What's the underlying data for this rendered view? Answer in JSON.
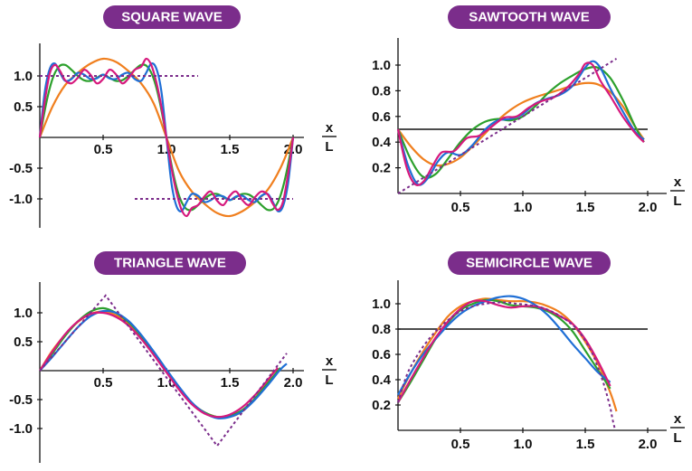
{
  "colors": {
    "badge": "#7b2d8b",
    "target": "#7b2d8b",
    "orange": "#f07f1e",
    "green": "#2ca02c",
    "blue": "#1f6fd6",
    "magenta": "#d6197d"
  },
  "xaxis_label": {
    "num": "x",
    "den": "L"
  },
  "chart_data": [
    {
      "id": "square",
      "type": "line",
      "title": "SQUARE WAVE",
      "xlim": [
        0,
        2.1
      ],
      "ylim": [
        -1.4,
        1.45
      ],
      "x_ticks": [
        0.5,
        1.0,
        1.5,
        2.0
      ],
      "x_tick_labels": [
        "0.5",
        "1.0",
        "1.5",
        "2.0"
      ],
      "y_ticks": [
        1.0,
        0.5,
        -0.5,
        -1.0
      ],
      "y_tick_labels": [
        "1.0",
        "0.5",
        "-0.5",
        "-1.0"
      ],
      "target_series": [
        {
          "style": "dotted",
          "x": [
            0,
            1.25
          ],
          "y": [
            1.0,
            1.0
          ]
        },
        {
          "style": "dotted",
          "x": [
            0.75,
            2.0
          ],
          "y": [
            -1.0,
            -1.0
          ]
        }
      ],
      "series": [
        {
          "color": "orange",
          "x": [
            0,
            0.1,
            0.2,
            0.3,
            0.4,
            0.5,
            0.6,
            0.7,
            0.8,
            0.9,
            1.0,
            1.1,
            1.2,
            1.3,
            1.4,
            1.5,
            1.6,
            1.7,
            1.8,
            1.9,
            2.0
          ],
          "y": [
            0,
            0.5,
            0.85,
            1.05,
            1.2,
            1.28,
            1.23,
            1.08,
            0.88,
            0.55,
            0,
            -0.55,
            -0.88,
            -1.08,
            -1.23,
            -1.28,
            -1.2,
            -1.05,
            -0.85,
            -0.5,
            0
          ]
        },
        {
          "color": "green",
          "x": [
            0,
            0.05,
            0.1,
            0.15,
            0.2,
            0.25,
            0.3,
            0.35,
            0.4,
            0.45,
            0.5,
            0.55,
            0.6,
            0.65,
            0.7,
            0.75,
            0.8,
            0.85,
            0.9,
            0.95,
            1.0,
            1.05,
            1.1,
            1.15,
            1.2,
            1.25,
            1.3,
            1.35,
            1.4,
            1.45,
            1.5,
            1.55,
            1.6,
            1.65,
            1.7,
            1.75,
            1.8,
            1.85,
            1.9,
            1.95,
            2.0
          ],
          "y": [
            0,
            0.55,
            0.95,
            1.15,
            1.18,
            1.1,
            1.0,
            0.93,
            0.92,
            0.97,
            1.02,
            0.97,
            0.92,
            0.93,
            1.0,
            1.1,
            1.18,
            1.15,
            0.95,
            0.55,
            0,
            -0.55,
            -0.95,
            -1.15,
            -1.18,
            -1.1,
            -1.0,
            -0.93,
            -0.92,
            -0.97,
            -1.02,
            -0.97,
            -0.92,
            -0.93,
            -1.0,
            -1.1,
            -1.18,
            -1.15,
            -0.95,
            -0.55,
            0
          ]
        },
        {
          "color": "blue",
          "x": [
            0,
            0.04,
            0.08,
            0.12,
            0.16,
            0.2,
            0.25,
            0.3,
            0.35,
            0.4,
            0.45,
            0.5,
            0.55,
            0.6,
            0.65,
            0.7,
            0.75,
            0.8,
            0.84,
            0.88,
            0.92,
            0.96,
            1.0,
            1.04,
            1.08,
            1.12,
            1.16,
            1.2,
            1.25,
            1.3,
            1.35,
            1.4,
            1.45,
            1.5,
            1.55,
            1.6,
            1.65,
            1.7,
            1.75,
            1.8,
            1.84,
            1.88,
            1.92,
            1.96,
            2.0
          ],
          "y": [
            0,
            0.75,
            1.12,
            1.2,
            1.05,
            0.92,
            0.95,
            1.05,
            1.02,
            0.95,
            0.96,
            1.02,
            0.96,
            0.95,
            1.02,
            1.05,
            0.95,
            0.92,
            1.05,
            1.2,
            1.12,
            0.75,
            0,
            -0.75,
            -1.12,
            -1.2,
            -1.05,
            -0.92,
            -0.95,
            -1.05,
            -1.02,
            -0.95,
            -0.96,
            -1.02,
            -0.96,
            -0.95,
            -1.02,
            -1.05,
            -0.95,
            -0.92,
            -1.05,
            -1.2,
            -1.12,
            -0.75,
            0
          ]
        },
        {
          "color": "magenta",
          "x": [
            0,
            0.04,
            0.08,
            0.12,
            0.16,
            0.2,
            0.25,
            0.3,
            0.35,
            0.4,
            0.45,
            0.5,
            0.55,
            0.6,
            0.65,
            0.7,
            0.75,
            0.8,
            0.84,
            0.88,
            0.92,
            0.96,
            1.0,
            1.04,
            1.08,
            1.12,
            1.16,
            1.2,
            1.25,
            1.3,
            1.35,
            1.4,
            1.45,
            1.5,
            1.55,
            1.6,
            1.65,
            1.7,
            1.75,
            1.8,
            1.84,
            1.88,
            1.92,
            1.96,
            2.0
          ],
          "y": [
            0,
            0.6,
            1.05,
            1.18,
            1.08,
            0.93,
            0.88,
            0.97,
            1.1,
            1.02,
            0.88,
            0.95,
            1.1,
            1.03,
            0.88,
            0.96,
            1.1,
            1.15,
            1.28,
            1.18,
            0.9,
            0.5,
            0,
            -0.5,
            -0.9,
            -1.18,
            -1.28,
            -1.15,
            -1.1,
            -0.96,
            -0.88,
            -1.03,
            -1.1,
            -0.95,
            -0.88,
            -1.02,
            -1.1,
            -0.97,
            -0.88,
            -0.93,
            -1.08,
            -1.18,
            -1.05,
            -0.6,
            0
          ]
        }
      ]
    },
    {
      "id": "sawtooth",
      "type": "line",
      "title": "SAWTOOTH WAVE",
      "xlim": [
        0,
        2.15
      ],
      "ylim": [
        0,
        1.2
      ],
      "x_ticks": [
        0.5,
        1.0,
        1.5,
        2.0
      ],
      "x_tick_labels": [
        "0.5",
        "1.0",
        "1.5",
        "2.0"
      ],
      "y_ticks": [
        1.0,
        0.8,
        0.6,
        0.4,
        0.2
      ],
      "y_tick_labels": [
        "1.0",
        "0.8",
        "0.6",
        "0.4",
        "0.2"
      ],
      "reference_line": 0.5,
      "target_series": [
        {
          "style": "dotted",
          "x": [
            0,
            1.75
          ],
          "y": [
            0,
            1.05
          ]
        }
      ],
      "series": [
        {
          "color": "orange",
          "x": [
            0,
            0.1,
            0.2,
            0.3,
            0.4,
            0.5,
            0.6,
            0.7,
            0.8,
            0.9,
            1.0,
            1.1,
            1.2,
            1.3,
            1.4,
            1.5,
            1.6,
            1.7,
            1.8,
            1.9,
            1.97
          ],
          "y": [
            0.5,
            0.37,
            0.27,
            0.22,
            0.23,
            0.28,
            0.37,
            0.47,
            0.57,
            0.65,
            0.71,
            0.75,
            0.78,
            0.81,
            0.84,
            0.86,
            0.85,
            0.79,
            0.68,
            0.52,
            0.42
          ]
        },
        {
          "color": "green",
          "x": [
            0,
            0.1,
            0.2,
            0.3,
            0.4,
            0.5,
            0.6,
            0.7,
            0.8,
            0.9,
            1.0,
            1.1,
            1.2,
            1.3,
            1.4,
            1.5,
            1.6,
            1.7,
            1.8,
            1.9,
            1.97
          ],
          "y": [
            0.5,
            0.27,
            0.13,
            0.15,
            0.27,
            0.4,
            0.5,
            0.56,
            0.58,
            0.57,
            0.6,
            0.68,
            0.78,
            0.86,
            0.92,
            0.97,
            0.98,
            0.9,
            0.73,
            0.52,
            0.4
          ]
        },
        {
          "color": "blue",
          "x": [
            0,
            0.08,
            0.16,
            0.24,
            0.32,
            0.4,
            0.5,
            0.6,
            0.7,
            0.8,
            0.9,
            1.0,
            1.1,
            1.2,
            1.3,
            1.4,
            1.5,
            1.56,
            1.62,
            1.7,
            1.8,
            1.9,
            1.97
          ],
          "y": [
            0.5,
            0.22,
            0.07,
            0.12,
            0.25,
            0.32,
            0.3,
            0.38,
            0.5,
            0.57,
            0.58,
            0.62,
            0.7,
            0.74,
            0.77,
            0.84,
            0.98,
            1.03,
            0.98,
            0.82,
            0.64,
            0.48,
            0.42
          ]
        },
        {
          "color": "magenta",
          "x": [
            0,
            0.07,
            0.14,
            0.21,
            0.28,
            0.35,
            0.45,
            0.55,
            0.65,
            0.75,
            0.85,
            0.95,
            1.05,
            1.15,
            1.25,
            1.35,
            1.45,
            1.5,
            1.56,
            1.62,
            1.7,
            1.8,
            1.9,
            1.97
          ],
          "y": [
            0.5,
            0.2,
            0.07,
            0.1,
            0.22,
            0.32,
            0.33,
            0.43,
            0.45,
            0.52,
            0.59,
            0.6,
            0.67,
            0.72,
            0.75,
            0.82,
            0.93,
            1.01,
            1.0,
            0.88,
            0.76,
            0.6,
            0.47,
            0.4
          ]
        }
      ]
    },
    {
      "id": "triangle",
      "type": "line",
      "title": "TRIANGLE WAVE",
      "xlim": [
        0,
        2.1
      ],
      "ylim": [
        -1.4,
        1.45
      ],
      "x_ticks": [
        0.5,
        1.0,
        1.5,
        2.0
      ],
      "x_tick_labels": [
        "0.5",
        "1.0",
        "1.5",
        "2.0"
      ],
      "y_ticks": [
        1.0,
        0.5,
        -0.5,
        -1.0
      ],
      "y_tick_labels": [
        "1.0",
        "0.5",
        "-0.5",
        "-1.0"
      ],
      "target_series": [
        {
          "style": "dotted",
          "x": [
            0,
            0.52,
            1.4,
            1.95
          ],
          "y": [
            0,
            1.3,
            -1.3,
            0.3
          ]
        }
      ],
      "series": [
        {
          "color": "orange",
          "x": [
            0,
            0.1,
            0.2,
            0.3,
            0.4,
            0.5,
            0.6,
            0.7,
            0.8,
            0.9,
            1.0,
            1.1,
            1.2,
            1.3,
            1.4,
            1.5,
            1.6,
            1.7,
            1.8,
            1.85
          ],
          "y": [
            0,
            0.35,
            0.62,
            0.84,
            0.98,
            1.02,
            0.96,
            0.82,
            0.6,
            0.31,
            0,
            -0.31,
            -0.56,
            -0.72,
            -0.8,
            -0.8,
            -0.7,
            -0.48,
            -0.18,
            0
          ]
        },
        {
          "color": "green",
          "x": [
            0,
            0.1,
            0.2,
            0.3,
            0.4,
            0.5,
            0.6,
            0.7,
            0.8,
            0.9,
            1.0,
            1.1,
            1.2,
            1.3,
            1.4,
            1.5,
            1.6,
            1.7,
            1.8,
            1.9
          ],
          "y": [
            0,
            0.3,
            0.6,
            0.85,
            1.02,
            1.08,
            1.0,
            0.84,
            0.6,
            0.3,
            0,
            -0.3,
            -0.56,
            -0.72,
            -0.8,
            -0.78,
            -0.68,
            -0.48,
            -0.22,
            0.05
          ]
        },
        {
          "color": "blue",
          "x": [
            0,
            0.1,
            0.2,
            0.3,
            0.4,
            0.5,
            0.6,
            0.7,
            0.8,
            0.9,
            1.0,
            1.1,
            1.2,
            1.3,
            1.4,
            1.5,
            1.6,
            1.7,
            1.8,
            1.9,
            1.95
          ],
          "y": [
            0,
            0.24,
            0.5,
            0.75,
            0.94,
            1.03,
            1.0,
            0.86,
            0.62,
            0.33,
            0.02,
            -0.28,
            -0.55,
            -0.73,
            -0.82,
            -0.8,
            -0.7,
            -0.5,
            -0.25,
            0.02,
            0.12
          ]
        },
        {
          "color": "magenta",
          "x": [
            0,
            0.1,
            0.2,
            0.3,
            0.4,
            0.5,
            0.6,
            0.7,
            0.8,
            0.9,
            1.0,
            1.1,
            1.2,
            1.3,
            1.4,
            1.5,
            1.6,
            1.7,
            1.8,
            1.88
          ],
          "y": [
            0,
            0.33,
            0.63,
            0.85,
            0.98,
            1.0,
            0.93,
            0.78,
            0.55,
            0.27,
            -0.03,
            -0.33,
            -0.58,
            -0.74,
            -0.8,
            -0.76,
            -0.63,
            -0.42,
            -0.16,
            0.05
          ]
        }
      ]
    },
    {
      "id": "semicircle",
      "type": "line",
      "title": "SEMICIRCLE WAVE",
      "xlim": [
        0,
        2.15
      ],
      "ylim": [
        0,
        1.2
      ],
      "x_ticks": [
        0.5,
        1.0,
        1.5,
        2.0
      ],
      "x_tick_labels": [
        "0.5",
        "1.0",
        "1.5",
        "2.0"
      ],
      "y_ticks": [
        1.0,
        0.8,
        0.6,
        0.4,
        0.2
      ],
      "y_tick_labels": [
        "1.0",
        "0.8",
        "0.6",
        "0.4",
        "0.2"
      ],
      "reference_line": 0.8,
      "target_series": [
        {
          "style": "dotted",
          "x": [
            0,
            0.05,
            0.1,
            0.2,
            0.3,
            0.4,
            0.5,
            0.6,
            0.7,
            0.8,
            0.87,
            0.95,
            1.05,
            1.15,
            1.25,
            1.35,
            1.45,
            1.55,
            1.6,
            1.65,
            1.7,
            1.72,
            1.74
          ],
          "y": [
            0.22,
            0.38,
            0.5,
            0.66,
            0.78,
            0.87,
            0.94,
            0.98,
            1.0,
            1.01,
            1.01,
            1.0,
            0.99,
            0.97,
            0.93,
            0.87,
            0.78,
            0.62,
            0.5,
            0.36,
            0.18,
            0.08,
            0.0
          ]
        }
      ],
      "series": [
        {
          "color": "orange",
          "x": [
            0,
            0.1,
            0.2,
            0.3,
            0.4,
            0.5,
            0.6,
            0.7,
            0.8,
            0.9,
            1.0,
            1.1,
            1.2,
            1.3,
            1.4,
            1.5,
            1.6,
            1.7,
            1.75
          ],
          "y": [
            0.25,
            0.45,
            0.62,
            0.77,
            0.9,
            0.98,
            1.02,
            1.04,
            1.03,
            1.02,
            1.02,
            1.01,
            0.98,
            0.93,
            0.84,
            0.7,
            0.53,
            0.3,
            0.15
          ]
        },
        {
          "color": "green",
          "x": [
            0,
            0.1,
            0.2,
            0.3,
            0.4,
            0.5,
            0.6,
            0.7,
            0.8,
            0.9,
            1.0,
            1.1,
            1.2,
            1.3,
            1.4,
            1.5,
            1.6,
            1.7
          ],
          "y": [
            0.22,
            0.38,
            0.55,
            0.72,
            0.85,
            0.95,
            1.0,
            1.03,
            1.02,
            0.99,
            0.98,
            0.97,
            0.94,
            0.88,
            0.78,
            0.63,
            0.48,
            0.33
          ]
        },
        {
          "color": "blue",
          "x": [
            0,
            0.1,
            0.2,
            0.3,
            0.4,
            0.5,
            0.6,
            0.7,
            0.8,
            0.9,
            1.0,
            1.1,
            1.2,
            1.3,
            1.4,
            1.5,
            1.6,
            1.7
          ],
          "y": [
            0.28,
            0.45,
            0.6,
            0.72,
            0.83,
            0.92,
            0.98,
            1.02,
            1.05,
            1.06,
            1.04,
            0.99,
            0.91,
            0.8,
            0.68,
            0.57,
            0.46,
            0.38
          ]
        },
        {
          "color": "magenta",
          "x": [
            0,
            0.1,
            0.2,
            0.3,
            0.4,
            0.5,
            0.6,
            0.7,
            0.8,
            0.9,
            1.0,
            1.1,
            1.2,
            1.3,
            1.4,
            1.5,
            1.6,
            1.7
          ],
          "y": [
            0.22,
            0.4,
            0.57,
            0.73,
            0.86,
            0.96,
            1.02,
            1.02,
            0.99,
            0.97,
            0.98,
            0.98,
            0.95,
            0.9,
            0.84,
            0.72,
            0.55,
            0.35
          ]
        }
      ]
    }
  ]
}
